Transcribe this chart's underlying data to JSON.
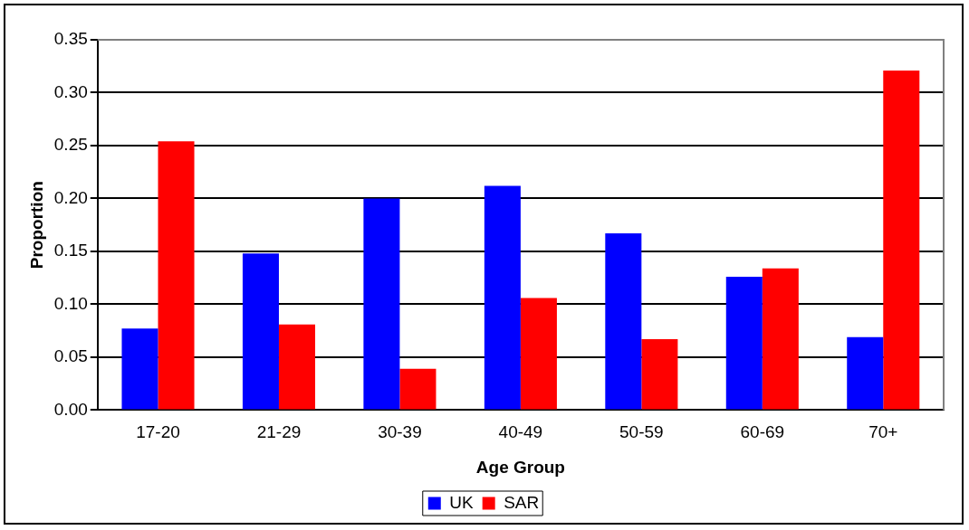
{
  "chart_data": {
    "type": "bar",
    "xlabel": "Age Group",
    "ylabel": "Proportion",
    "categories": [
      "17-20",
      "21-29",
      "30-39",
      "40-49",
      "50-59",
      "60-69",
      "70+"
    ],
    "series": [
      {
        "name": "UK",
        "color": "#0000ff",
        "values": [
          0.077,
          0.148,
          0.2,
          0.212,
          0.167,
          0.126,
          0.069
        ]
      },
      {
        "name": "SAR",
        "color": "#ff0000",
        "values": [
          0.254,
          0.081,
          0.039,
          0.106,
          0.067,
          0.134,
          0.321
        ]
      }
    ],
    "ylim": [
      0,
      0.35
    ],
    "yticks": [
      {
        "value": 0,
        "label": "0.00"
      },
      {
        "value": 0.05,
        "label": "0.05"
      },
      {
        "value": 0.1,
        "label": "0.10"
      },
      {
        "value": 0.15,
        "label": "0.15"
      },
      {
        "value": 0.2,
        "label": "0.20"
      },
      {
        "value": 0.25,
        "label": "0.25"
      },
      {
        "value": 0.3,
        "label": "0.30"
      },
      {
        "value": 0.35,
        "label": "0.35"
      }
    ],
    "grid": "y",
    "legend": "bottom"
  }
}
